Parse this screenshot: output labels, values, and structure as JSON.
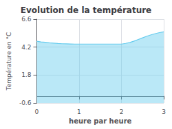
{
  "chart_data": {
    "type": "area",
    "title": "Evolution de la température",
    "x_label": "heure par heure",
    "y_label": "Température en °C",
    "x": [
      0.0,
      0.1,
      0.2,
      0.3,
      0.4,
      0.5,
      0.6,
      0.7,
      0.8,
      0.9,
      1.0,
      1.1,
      1.2,
      1.3,
      1.4,
      1.5,
      1.6,
      1.7,
      1.8,
      1.9,
      2.0,
      2.1,
      2.2,
      2.3,
      2.4,
      2.5,
      2.6,
      2.7,
      2.8,
      2.9,
      3.0
    ],
    "values": [
      4.7,
      4.65,
      4.61,
      4.57,
      4.54,
      4.51,
      4.49,
      4.48,
      4.47,
      4.46,
      4.46,
      4.46,
      4.46,
      4.46,
      4.46,
      4.46,
      4.46,
      4.46,
      4.46,
      4.46,
      4.46,
      4.52,
      4.6,
      4.72,
      4.86,
      5.0,
      5.14,
      5.26,
      5.36,
      5.45,
      5.52
    ],
    "color": "#66ccee",
    "xlim": [
      0,
      3
    ],
    "xticks": [
      0,
      1,
      2,
      3
    ],
    "ylim": [
      -0.6,
      6.6
    ],
    "yticks": [
      -0.6,
      1.8,
      4.2,
      6.6
    ],
    "grid": true
  }
}
